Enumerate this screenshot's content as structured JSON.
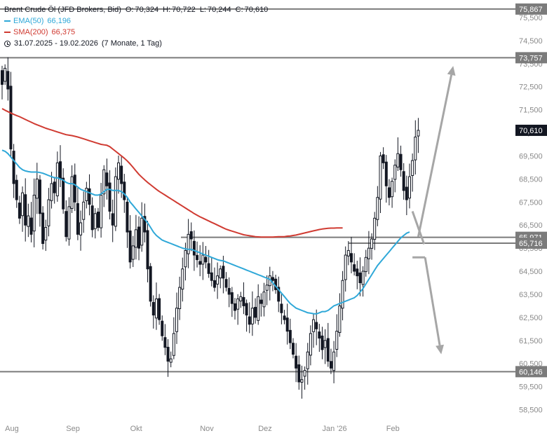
{
  "header": {
    "instrument": "Brent Crude Öl (JFD Brokers, Bid)",
    "ohlc": [
      {
        "key": "O:",
        "value": "70,324"
      },
      {
        "key": "H:",
        "value": "70,722"
      },
      {
        "key": "L:",
        "value": "70,244"
      },
      {
        "key": "C:",
        "value": "70,610"
      }
    ],
    "ema_label": "EMA(50)",
    "ema_value": "66,196",
    "sma_label": "SMA(200)",
    "sma_value": "66,375",
    "range": "31.07.2025 - 19.02.2026",
    "range_note": "(7 Monate, 1 Tag)"
  },
  "colors": {
    "ema": "#2fa8d8",
    "sma": "#d03b32",
    "candle": "#131722",
    "level_line": "#7b7b7b",
    "arrow": "#a6a6a6",
    "label_box": "#7b7b7b",
    "price_box": "#131722"
  },
  "chart_data": {
    "type": "candlestick",
    "title": "Brent Crude Öl (JFD Brokers, Bid)",
    "ylim": [
      58.0,
      76.0
    ],
    "y_ticks": [
      {
        "value": 58.5,
        "label": "58,500"
      },
      {
        "value": 59.5,
        "label": "59,500"
      },
      {
        "value": 60.5,
        "label": "60,500"
      },
      {
        "value": 61.5,
        "label": "61,500"
      },
      {
        "value": 62.5,
        "label": "62,500"
      },
      {
        "value": 63.5,
        "label": "63,500"
      },
      {
        "value": 64.5,
        "label": "64,500"
      },
      {
        "value": 65.5,
        "label": "65,500"
      },
      {
        "value": 66.5,
        "label": "66,500"
      },
      {
        "value": 67.5,
        "label": "67,500"
      },
      {
        "value": 68.5,
        "label": "68,500"
      },
      {
        "value": 69.5,
        "label": "69,500"
      },
      {
        "value": 70.5,
        "label": "70,500"
      },
      {
        "value": 71.5,
        "label": "71,500"
      },
      {
        "value": 72.5,
        "label": "72,500"
      },
      {
        "value": 73.5,
        "label": "73,500"
      },
      {
        "value": 74.5,
        "label": "74,500"
      },
      {
        "value": 75.5,
        "label": "75,500"
      }
    ],
    "x_ticks": [
      {
        "label": "Aug",
        "index": 1
      },
      {
        "label": "Sep",
        "index": 22
      },
      {
        "label": "Okt",
        "index": 44
      },
      {
        "label": "Nov",
        "index": 68
      },
      {
        "label": "Dez",
        "index": 88
      },
      {
        "label": "Jan '26",
        "index": 110
      },
      {
        "label": "Feb",
        "index": 132
      }
    ],
    "levels": [
      {
        "value": 75.867,
        "label": "75,867"
      },
      {
        "value": 73.757,
        "label": "73,757"
      },
      {
        "value": 65.971,
        "label": "65,971"
      },
      {
        "value": 65.716,
        "label": "65,716"
      },
      {
        "value": 60.146,
        "label": "60,146"
      }
    ],
    "last_price": {
      "value": 70.61,
      "label": "70,610"
    },
    "arrows": [
      {
        "from_index": 143,
        "from_value": 66.0,
        "to_index": 155,
        "to_value": 73.4,
        "direction": "up"
      },
      {
        "from_index": 141,
        "from_value": 67.1,
        "to_index": 145,
        "to_value": 66.1,
        "direction": "down-zigzag"
      },
      {
        "from_index": 141,
        "from_value": 65.1,
        "to_index": 148,
        "to_value": 60.9,
        "direction": "down"
      }
    ],
    "closes": [
      72.6,
      73.3,
      72.4,
      69.8,
      68.3,
      67.6,
      66.8,
      67.9,
      66.5,
      66.9,
      66.1,
      67.8,
      68.5,
      67.0,
      65.7,
      66.4,
      67.6,
      68.3,
      67.9,
      69.2,
      68.5,
      67.2,
      66.0,
      67.3,
      68.6,
      67.5,
      66.1,
      66.6,
      67.5,
      68.1,
      67.4,
      66.3,
      67.0,
      66.4,
      67.8,
      68.9,
      68.2,
      67.1,
      66.5,
      68.6,
      69.2,
      68.3,
      67.6,
      66.2,
      64.9,
      65.6,
      66.3,
      65.5,
      66.8,
      66.2,
      64.6,
      63.2,
      62.6,
      63.3,
      62.4,
      61.7,
      61.2,
      60.6,
      60.7,
      61.8,
      62.9,
      63.8,
      64.6,
      65.4,
      66.1,
      65.9,
      65.2,
      65.0,
      64.8,
      65.2,
      64.9,
      64.4,
      64.1,
      63.8,
      64.3,
      64.6,
      64.2,
      63.8,
      63.5,
      63.1,
      62.8,
      63.3,
      63.4,
      63.0,
      62.6,
      62.2,
      62.9,
      62.5,
      63.4,
      63.1,
      63.6,
      63.9,
      64.3,
      64.1,
      63.7,
      63.2,
      62.7,
      62.4,
      61.9,
      61.4,
      60.9,
      60.3,
      59.7,
      59.8,
      60.2,
      61.0,
      61.8,
      62.4,
      62.0,
      61.6,
      61.1,
      61.5,
      60.6,
      60.3,
      61.0,
      61.9,
      63.0,
      64.1,
      65.2,
      65.4,
      64.9,
      64.5,
      64.3,
      64.0,
      64.5,
      65.1,
      65.5,
      65.9,
      66.8,
      67.7,
      69.5,
      69.2,
      68.2,
      67.7,
      68.4,
      69.1,
      69.6,
      68.9,
      68.0,
      67.6,
      68.6,
      69.3,
      70.32,
      70.61
    ],
    "series": [
      {
        "name": "EMA(50)",
        "values": [
          69.75,
          69.7,
          69.6,
          69.45,
          69.3,
          69.15,
          69.0,
          68.9,
          68.85,
          68.82,
          68.8,
          68.8,
          68.8,
          68.78,
          68.75,
          68.7,
          68.65,
          68.6,
          68.55,
          68.55,
          68.5,
          68.45,
          68.35,
          68.3,
          68.3,
          68.25,
          68.15,
          68.05,
          68.0,
          67.95,
          67.9,
          67.85,
          67.8,
          67.8,
          67.85,
          67.95,
          68.05,
          68.05,
          68.0,
          68.0,
          68.0,
          67.95,
          67.85,
          67.7,
          67.5,
          67.35,
          67.2,
          67.05,
          66.9,
          66.75,
          66.6,
          66.4,
          66.2,
          66.05,
          65.95,
          65.85,
          65.8,
          65.75,
          65.7,
          65.65,
          65.6,
          65.55,
          65.5,
          65.47,
          65.45,
          65.45,
          65.4,
          65.35,
          65.3,
          65.25,
          65.2,
          65.15,
          65.1,
          65.05,
          65.0,
          64.97,
          64.95,
          64.9,
          64.85,
          64.8,
          64.75,
          64.7,
          64.65,
          64.6,
          64.55,
          64.5,
          64.45,
          64.4,
          64.35,
          64.3,
          64.25,
          64.2,
          64.15,
          64.0,
          63.85,
          63.7,
          63.55,
          63.4,
          63.25,
          63.1,
          63.0,
          62.9,
          62.85,
          62.8,
          62.75,
          62.7,
          62.68,
          62.66,
          62.65,
          62.7,
          62.75,
          62.75,
          62.8,
          62.9,
          63.0,
          63.05,
          63.1,
          63.15,
          63.2,
          63.25,
          63.3,
          63.35,
          63.45,
          63.6,
          63.75,
          63.95,
          64.15,
          64.35,
          64.55,
          64.75,
          64.9,
          65.05,
          65.2,
          65.35,
          65.5,
          65.65,
          65.8,
          65.95,
          66.05,
          66.15,
          66.2
        ]
      },
      {
        "name": "SMA(200)",
        "values": [
          71.55,
          71.48,
          71.42,
          71.36,
          71.3,
          71.25,
          71.2,
          71.14,
          71.08,
          71.02,
          70.96,
          70.9,
          70.85,
          70.8,
          70.75,
          70.7,
          70.66,
          70.62,
          70.58,
          70.54,
          70.5,
          70.46,
          70.42,
          70.4,
          70.38,
          70.35,
          70.32,
          70.28,
          70.24,
          70.2,
          70.16,
          70.12,
          70.08,
          70.04,
          70.0,
          69.98,
          69.96,
          69.9,
          69.8,
          69.7,
          69.6,
          69.5,
          69.4,
          69.28,
          69.15,
          69.0,
          68.85,
          68.7,
          68.58,
          68.46,
          68.35,
          68.25,
          68.15,
          68.05,
          67.96,
          67.88,
          67.8,
          67.72,
          67.64,
          67.56,
          67.48,
          67.4,
          67.32,
          67.24,
          67.16,
          67.08,
          67.0,
          66.93,
          66.86,
          66.8,
          66.74,
          66.68,
          66.62,
          66.56,
          66.5,
          66.44,
          66.38,
          66.32,
          66.28,
          66.24,
          66.2,
          66.16,
          66.12,
          66.08,
          66.06,
          66.04,
          66.02,
          66.0,
          65.99,
          65.98,
          65.98,
          65.98,
          65.98,
          65.98,
          65.99,
          66.0,
          66.0,
          66.0,
          66.02,
          66.03,
          66.05,
          66.07,
          66.1,
          66.13,
          66.16,
          66.19,
          66.22,
          66.25,
          66.28,
          66.31,
          66.33,
          66.35,
          66.36,
          66.37,
          66.37,
          66.38,
          66.38,
          66.38
        ]
      }
    ]
  }
}
